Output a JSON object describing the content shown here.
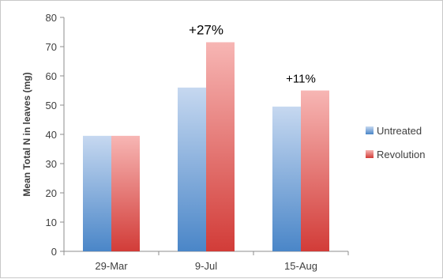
{
  "chart_data": {
    "type": "bar",
    "ylabel": "Mean Total N in leaves (mg)",
    "ylim": [
      0,
      80
    ],
    "yticks": [
      0,
      10,
      20,
      30,
      40,
      50,
      60,
      70,
      80
    ],
    "categories": [
      "29-Mar",
      "9-Jul",
      "15-Aug"
    ],
    "series": [
      {
        "name": "Untreated",
        "values": [
          39.5,
          56,
          49.5
        ]
      },
      {
        "name": "Revolution",
        "values": [
          39.5,
          71.5,
          55
        ]
      }
    ],
    "annotations": [
      {
        "category": "9-Jul",
        "text": "+27%"
      },
      {
        "category": "15-Aug",
        "text": "+11%"
      }
    ],
    "legend_position": "right",
    "grid": false,
    "colors": {
      "Untreated_top": "#c6d8f0",
      "Untreated_bottom": "#4a86c8",
      "Revolution_top": "#f7b6b4",
      "Revolution_bottom": "#d23c38"
    }
  }
}
